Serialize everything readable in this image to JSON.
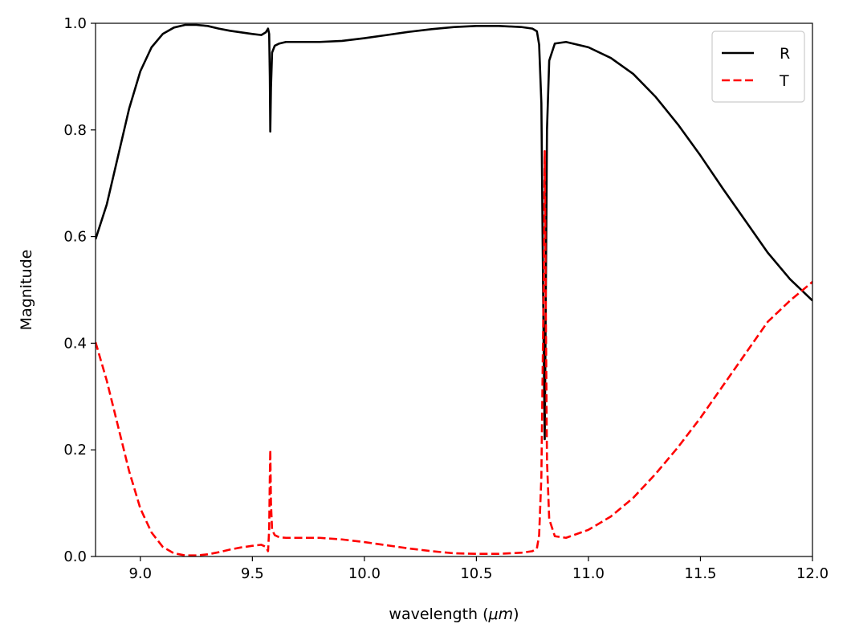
{
  "chart_data": {
    "type": "line",
    "title": "",
    "xlabel": "wavelength (",
    "xlabel_unit": "μm",
    "xlabel_close": ")",
    "ylabel": "Magnitude",
    "xlim": [
      8.8,
      12.0
    ],
    "ylim": [
      0.0,
      1.0
    ],
    "xticks": [
      "9.0",
      "9.5",
      "10.0",
      "10.5",
      "11.0",
      "11.5",
      "12.0"
    ],
    "yticks": [
      "0.0",
      "0.2",
      "0.4",
      "0.6",
      "0.8",
      "1.0"
    ],
    "grid": false,
    "legend_position": "top-right",
    "series": [
      {
        "name": "R",
        "color": "#000000",
        "style": "solid",
        "points": [
          [
            8.8,
            0.595
          ],
          [
            8.85,
            0.66
          ],
          [
            8.9,
            0.75
          ],
          [
            8.95,
            0.84
          ],
          [
            9.0,
            0.91
          ],
          [
            9.05,
            0.955
          ],
          [
            9.1,
            0.98
          ],
          [
            9.15,
            0.992
          ],
          [
            9.2,
            0.997
          ],
          [
            9.25,
            0.997
          ],
          [
            9.3,
            0.995
          ],
          [
            9.35,
            0.99
          ],
          [
            9.4,
            0.986
          ],
          [
            9.45,
            0.983
          ],
          [
            9.5,
            0.98
          ],
          [
            9.54,
            0.978
          ],
          [
            9.56,
            0.983
          ],
          [
            9.57,
            0.99
          ],
          [
            9.575,
            0.98
          ],
          [
            9.578,
            0.9
          ],
          [
            9.58,
            0.797
          ],
          [
            9.583,
            0.88
          ],
          [
            9.588,
            0.945
          ],
          [
            9.6,
            0.958
          ],
          [
            9.62,
            0.962
          ],
          [
            9.65,
            0.965
          ],
          [
            9.7,
            0.965
          ],
          [
            9.8,
            0.965
          ],
          [
            9.9,
            0.967
          ],
          [
            10.0,
            0.972
          ],
          [
            10.1,
            0.978
          ],
          [
            10.2,
            0.984
          ],
          [
            10.3,
            0.989
          ],
          [
            10.4,
            0.993
          ],
          [
            10.5,
            0.995
          ],
          [
            10.6,
            0.995
          ],
          [
            10.7,
            0.993
          ],
          [
            10.75,
            0.99
          ],
          [
            10.77,
            0.985
          ],
          [
            10.78,
            0.96
          ],
          [
            10.79,
            0.85
          ],
          [
            10.8,
            0.4
          ],
          [
            10.805,
            0.22
          ],
          [
            10.81,
            0.5
          ],
          [
            10.815,
            0.8
          ],
          [
            10.825,
            0.93
          ],
          [
            10.85,
            0.962
          ],
          [
            10.9,
            0.965
          ],
          [
            11.0,
            0.955
          ],
          [
            11.1,
            0.935
          ],
          [
            11.2,
            0.905
          ],
          [
            11.3,
            0.862
          ],
          [
            11.4,
            0.81
          ],
          [
            11.5,
            0.752
          ],
          [
            11.6,
            0.69
          ],
          [
            11.7,
            0.63
          ],
          [
            11.8,
            0.57
          ],
          [
            11.9,
            0.52
          ],
          [
            12.0,
            0.48
          ]
        ]
      },
      {
        "name": "T",
        "color": "#ff0000",
        "style": "dashed",
        "points": [
          [
            8.8,
            0.402
          ],
          [
            8.85,
            0.33
          ],
          [
            8.9,
            0.245
          ],
          [
            8.95,
            0.16
          ],
          [
            9.0,
            0.09
          ],
          [
            9.05,
            0.045
          ],
          [
            9.1,
            0.018
          ],
          [
            9.15,
            0.006
          ],
          [
            9.2,
            0.002
          ],
          [
            9.25,
            0.002
          ],
          [
            9.3,
            0.004
          ],
          [
            9.35,
            0.008
          ],
          [
            9.4,
            0.013
          ],
          [
            9.45,
            0.017
          ],
          [
            9.5,
            0.02
          ],
          [
            9.54,
            0.022
          ],
          [
            9.56,
            0.018
          ],
          [
            9.57,
            0.01
          ],
          [
            9.575,
            0.05
          ],
          [
            9.578,
            0.15
          ],
          [
            9.58,
            0.2
          ],
          [
            9.583,
            0.1
          ],
          [
            9.588,
            0.05
          ],
          [
            9.6,
            0.04
          ],
          [
            9.62,
            0.036
          ],
          [
            9.65,
            0.035
          ],
          [
            9.7,
            0.035
          ],
          [
            9.8,
            0.035
          ],
          [
            9.9,
            0.032
          ],
          [
            10.0,
            0.027
          ],
          [
            10.1,
            0.021
          ],
          [
            10.2,
            0.015
          ],
          [
            10.3,
            0.01
          ],
          [
            10.4,
            0.006
          ],
          [
            10.5,
            0.005
          ],
          [
            10.6,
            0.005
          ],
          [
            10.7,
            0.007
          ],
          [
            10.75,
            0.01
          ],
          [
            10.77,
            0.015
          ],
          [
            10.78,
            0.04
          ],
          [
            10.79,
            0.15
          ],
          [
            10.8,
            0.5
          ],
          [
            10.805,
            0.76
          ],
          [
            10.81,
            0.45
          ],
          [
            10.815,
            0.18
          ],
          [
            10.825,
            0.07
          ],
          [
            10.85,
            0.038
          ],
          [
            10.9,
            0.035
          ],
          [
            11.0,
            0.05
          ],
          [
            11.1,
            0.075
          ],
          [
            11.2,
            0.11
          ],
          [
            11.3,
            0.155
          ],
          [
            11.4,
            0.205
          ],
          [
            11.5,
            0.26
          ],
          [
            11.6,
            0.32
          ],
          [
            11.7,
            0.38
          ],
          [
            11.8,
            0.44
          ],
          [
            11.9,
            0.48
          ],
          [
            12.0,
            0.515
          ]
        ]
      }
    ]
  }
}
